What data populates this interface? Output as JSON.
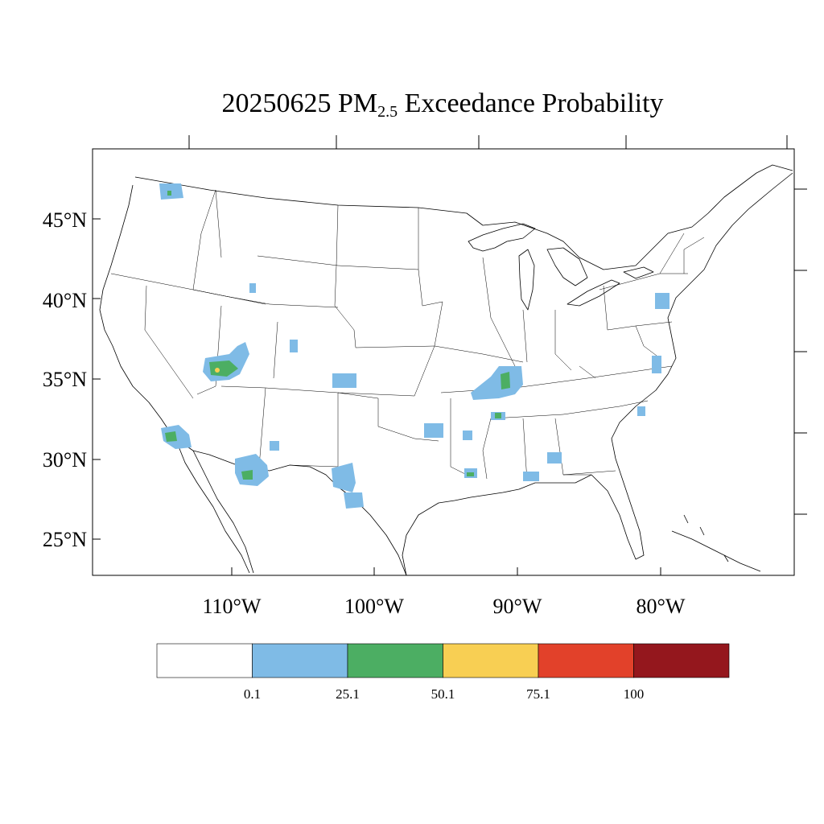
{
  "title": {
    "date": "20250625",
    "pm_main": "PM",
    "pm_sub": "2.5",
    "rest": "Exceedance Probability"
  },
  "map": {
    "lat_labels": [
      "45°N",
      "40°N",
      "35°N",
      "30°N",
      "25°N"
    ],
    "lon_labels": [
      "110°W",
      "100°W",
      "90°W",
      "80°W"
    ],
    "lat_values": [
      45,
      40,
      35,
      30,
      25
    ],
    "lon_values": [
      -110,
      -100,
      -90,
      -80
    ]
  },
  "legend": {
    "bins": [
      {
        "color": "#ffffff"
      },
      {
        "color": "#7fbbe6"
      },
      {
        "color": "#4cae63"
      },
      {
        "color": "#f8cf53"
      },
      {
        "color": "#e2412a"
      },
      {
        "color": "#94171d"
      }
    ],
    "labels": [
      "0.1",
      "25.1",
      "50.1",
      "75.1",
      "100"
    ]
  },
  "colors": {
    "p0": "#7fbbe6",
    "p25": "#4cae63",
    "p50": "#f8cf53"
  }
}
